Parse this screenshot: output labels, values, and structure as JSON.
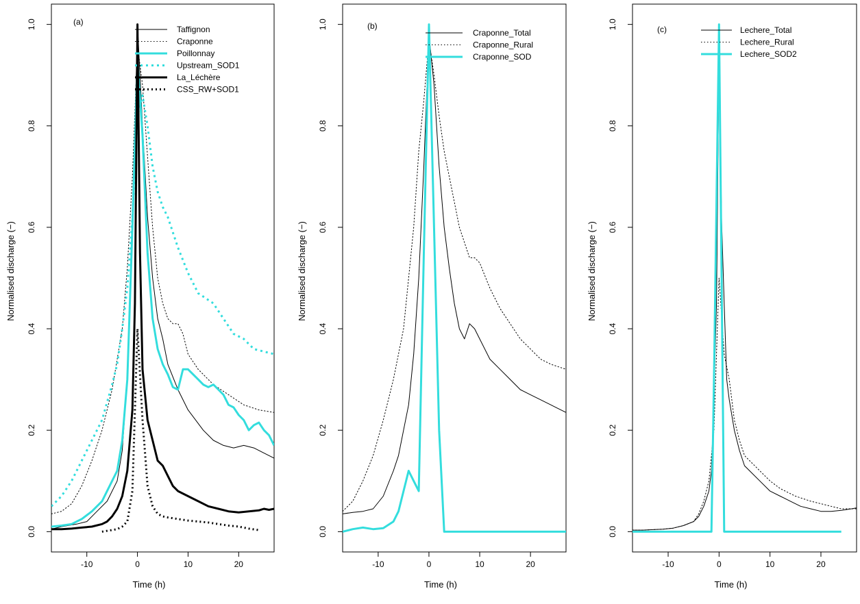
{
  "chart_data": [
    {
      "type": "line",
      "tag": "(a)",
      "xlabel": "Time (h)",
      "ylabel": "Normalised discharge (−)",
      "xlim": [
        -17,
        27
      ],
      "ylim": [
        -0.04,
        1.04
      ],
      "xticks": [
        -10,
        0,
        10,
        20
      ],
      "yticks": [
        "0.0",
        "0.2",
        "0.4",
        "0.6",
        "0.8",
        "1.0"
      ],
      "legend_position": "top-right",
      "series": [
        {
          "name": "Taffignon",
          "color": "#000000",
          "width": 1,
          "dash": "solid",
          "x": [
            -17,
            -15,
            -12,
            -10,
            -8,
            -6,
            -4,
            -3,
            -2,
            -1,
            0,
            1,
            2,
            3,
            4,
            5,
            6,
            8,
            10,
            13,
            15,
            17,
            19,
            21,
            23,
            25,
            27
          ],
          "y": [
            0.005,
            0.01,
            0.015,
            0.02,
            0.04,
            0.06,
            0.1,
            0.16,
            0.3,
            0.6,
            1.0,
            0.8,
            0.62,
            0.5,
            0.42,
            0.38,
            0.33,
            0.28,
            0.24,
            0.2,
            0.18,
            0.17,
            0.165,
            0.17,
            0.165,
            0.155,
            0.145
          ]
        },
        {
          "name": "Craponne",
          "color": "#000000",
          "width": 1,
          "dash": "1.5,3",
          "x": [
            -17,
            -15,
            -13,
            -11,
            -9,
            -7,
            -5,
            -3,
            -2,
            -1,
            0,
            1,
            2,
            3,
            4,
            5,
            6,
            7,
            8,
            9,
            10,
            12,
            15,
            18,
            21,
            24,
            27
          ],
          "y": [
            0.035,
            0.04,
            0.055,
            0.09,
            0.14,
            0.2,
            0.28,
            0.4,
            0.52,
            0.7,
            0.96,
            0.88,
            0.74,
            0.6,
            0.5,
            0.45,
            0.42,
            0.41,
            0.41,
            0.39,
            0.35,
            0.32,
            0.29,
            0.27,
            0.25,
            0.24,
            0.235
          ]
        },
        {
          "name": "Poillonnay",
          "color": "#33dddd",
          "width": 3,
          "dash": "solid",
          "x": [
            -17,
            -15,
            -13,
            -11,
            -9,
            -7,
            -5,
            -4,
            -3,
            -2,
            -1,
            0,
            1,
            2,
            3,
            4,
            5,
            6,
            7,
            8,
            9,
            10,
            11,
            12,
            13,
            14,
            15,
            16,
            17,
            18,
            19,
            20,
            21,
            22,
            23,
            24,
            25,
            26,
            27
          ],
          "y": [
            0.01,
            0.012,
            0.015,
            0.025,
            0.04,
            0.06,
            0.1,
            0.12,
            0.18,
            0.3,
            0.6,
            0.93,
            0.78,
            0.55,
            0.42,
            0.36,
            0.33,
            0.31,
            0.285,
            0.28,
            0.32,
            0.32,
            0.31,
            0.3,
            0.29,
            0.285,
            0.29,
            0.28,
            0.27,
            0.25,
            0.245,
            0.23,
            0.22,
            0.2,
            0.21,
            0.215,
            0.2,
            0.19,
            0.17
          ]
        },
        {
          "name": "Upstream_SOD1",
          "color": "#33dddd",
          "width": 3,
          "dash": "3,5",
          "x": [
            -17,
            -15,
            -13,
            -11,
            -9,
            -7,
            -5,
            -4,
            -3,
            -2,
            -1,
            0,
            1,
            2,
            3,
            4,
            5,
            6,
            8,
            10,
            12,
            15,
            17,
            19,
            21,
            23,
            25,
            27
          ],
          "y": [
            0.05,
            0.07,
            0.1,
            0.14,
            0.18,
            0.22,
            0.29,
            0.33,
            0.4,
            0.48,
            0.62,
            0.82,
            0.86,
            0.8,
            0.72,
            0.67,
            0.64,
            0.62,
            0.56,
            0.51,
            0.47,
            0.45,
            0.42,
            0.39,
            0.38,
            0.36,
            0.355,
            0.35
          ]
        },
        {
          "name": "La_Léchère",
          "color": "#000000",
          "width": 3,
          "dash": "solid",
          "x": [
            -17,
            -15,
            -13,
            -11,
            -9,
            -7,
            -6,
            -5,
            -4,
            -3,
            -2,
            -1,
            -0.5,
            0,
            0.5,
            1,
            2,
            3,
            4,
            5,
            6,
            7,
            8,
            10,
            12,
            14,
            16,
            18,
            20,
            22,
            24,
            25,
            26,
            27
          ],
          "y": [
            0.005,
            0.005,
            0.006,
            0.008,
            0.01,
            0.015,
            0.02,
            0.03,
            0.045,
            0.07,
            0.12,
            0.24,
            0.45,
            1.0,
            0.55,
            0.32,
            0.22,
            0.18,
            0.14,
            0.13,
            0.11,
            0.09,
            0.08,
            0.07,
            0.06,
            0.05,
            0.045,
            0.04,
            0.038,
            0.04,
            0.042,
            0.045,
            0.043,
            0.045
          ]
        },
        {
          "name": "CSS_RW+SOD1",
          "color": "#000000",
          "width": 3,
          "dash": "2,4",
          "x": [
            -7,
            -4,
            -3,
            -2,
            -1,
            0,
            1,
            2,
            3,
            4,
            5,
            6,
            8,
            10,
            12,
            14,
            16,
            18,
            20,
            22,
            24
          ],
          "y": [
            0.0,
            0.005,
            0.01,
            0.02,
            0.08,
            0.4,
            0.22,
            0.09,
            0.05,
            0.035,
            0.03,
            0.028,
            0.025,
            0.022,
            0.02,
            0.018,
            0.015,
            0.012,
            0.01,
            0.006,
            0.003
          ]
        }
      ]
    },
    {
      "type": "line",
      "tag": "(b)",
      "xlabel": "Time (h)",
      "ylabel": "Normalised discharge (−)",
      "xlim": [
        -17,
        27
      ],
      "ylim": [
        -0.04,
        1.04
      ],
      "xticks": [
        -10,
        0,
        10,
        20
      ],
      "yticks": [
        "0.0",
        "0.2",
        "0.4",
        "0.6",
        "0.8",
        "1.0"
      ],
      "legend_position": "top-right",
      "series": [
        {
          "name": "Craponne_Total",
          "color": "#000000",
          "width": 1,
          "dash": "solid",
          "x": [
            -17,
            -15,
            -13,
            -11,
            -9,
            -7,
            -6,
            -5,
            -4,
            -3,
            -2,
            -1,
            0,
            1,
            2,
            3,
            4,
            5,
            6,
            7,
            8,
            9,
            10,
            12,
            14,
            16,
            18,
            20,
            22,
            24,
            25,
            27
          ],
          "y": [
            0.035,
            0.038,
            0.04,
            0.045,
            0.07,
            0.12,
            0.15,
            0.2,
            0.25,
            0.35,
            0.5,
            0.72,
            0.98,
            0.88,
            0.72,
            0.6,
            0.52,
            0.45,
            0.4,
            0.38,
            0.41,
            0.4,
            0.38,
            0.34,
            0.32,
            0.3,
            0.28,
            0.27,
            0.26,
            0.25,
            0.245,
            0.235
          ]
        },
        {
          "name": "Craponne_Rural",
          "color": "#000000",
          "width": 1,
          "dash": "1.5,3",
          "x": [
            -17,
            -15,
            -13,
            -11,
            -9,
            -7,
            -5,
            -4,
            -3,
            -2,
            -1,
            0,
            1,
            2,
            3,
            4,
            5,
            6,
            7,
            8,
            9,
            10,
            12,
            14,
            16,
            18,
            20,
            22,
            24,
            27
          ],
          "y": [
            0.04,
            0.06,
            0.1,
            0.15,
            0.22,
            0.3,
            0.4,
            0.5,
            0.6,
            0.75,
            0.85,
            0.97,
            0.9,
            0.82,
            0.75,
            0.7,
            0.65,
            0.6,
            0.57,
            0.54,
            0.54,
            0.53,
            0.48,
            0.44,
            0.41,
            0.38,
            0.36,
            0.34,
            0.33,
            0.32
          ]
        },
        {
          "name": "Craponne_SOD",
          "color": "#33dddd",
          "width": 3,
          "dash": "solid",
          "x": [
            -17,
            -15,
            -13,
            -11,
            -9,
            -7,
            -6,
            -5,
            -4,
            -3,
            -2,
            -1,
            0,
            1,
            2,
            3,
            27
          ],
          "y": [
            0.0,
            0.005,
            0.008,
            0.005,
            0.007,
            0.02,
            0.04,
            0.08,
            0.12,
            0.1,
            0.08,
            0.55,
            1.0,
            0.6,
            0.2,
            0.0,
            0.0
          ]
        }
      ]
    },
    {
      "type": "line",
      "tag": "(c)",
      "xlabel": "Time (h)",
      "ylabel": "Normalised discharge (−)",
      "xlim": [
        -17,
        27
      ],
      "ylim": [
        -0.04,
        1.04
      ],
      "xticks": [
        -10,
        0,
        10,
        20
      ],
      "yticks": [
        "0.0",
        "0.2",
        "0.4",
        "0.6",
        "0.8",
        "1.0"
      ],
      "legend_position": "top-right",
      "series": [
        {
          "name": "Lechere_Total",
          "color": "#000000",
          "width": 1,
          "dash": "solid",
          "x": [
            -17,
            -15,
            -13,
            -11,
            -9,
            -7,
            -5,
            -4,
            -3,
            -2,
            -1.5,
            -1,
            -0.5,
            0,
            0.5,
            1,
            1.5,
            2,
            3,
            4,
            5,
            6,
            8,
            10,
            12,
            14,
            16,
            18,
            20,
            22,
            24,
            26,
            27
          ],
          "y": [
            0.003,
            0.003,
            0.004,
            0.005,
            0.007,
            0.012,
            0.02,
            0.03,
            0.05,
            0.08,
            0.12,
            0.27,
            0.45,
            0.95,
            0.61,
            0.45,
            0.3,
            0.26,
            0.2,
            0.16,
            0.13,
            0.12,
            0.1,
            0.08,
            0.07,
            0.06,
            0.05,
            0.045,
            0.04,
            0.04,
            0.042,
            0.045,
            0.047
          ]
        },
        {
          "name": "Lechere_Rural",
          "color": "#000000",
          "width": 1,
          "dash": "1.5,3",
          "x": [
            -17,
            -15,
            -13,
            -11,
            -9,
            -7,
            -5,
            -4,
            -3,
            -2,
            -1,
            0,
            1,
            2,
            3,
            4,
            5,
            6,
            8,
            10,
            12,
            15,
            18,
            20,
            22,
            24,
            27
          ],
          "y": [
            0.003,
            0.003,
            0.004,
            0.005,
            0.007,
            0.012,
            0.02,
            0.035,
            0.06,
            0.1,
            0.2,
            0.5,
            0.35,
            0.3,
            0.22,
            0.18,
            0.15,
            0.14,
            0.12,
            0.1,
            0.085,
            0.07,
            0.06,
            0.055,
            0.05,
            0.045,
            0.045
          ]
        },
        {
          "name": "Lechere_SOD2",
          "color": "#33dddd",
          "width": 3,
          "dash": "solid",
          "x": [
            -17,
            -1.5,
            -1,
            0,
            1,
            1.5,
            24
          ],
          "y": [
            0.0,
            0.0,
            0.3,
            1.0,
            0.0,
            0.0,
            0.0
          ]
        }
      ]
    }
  ]
}
